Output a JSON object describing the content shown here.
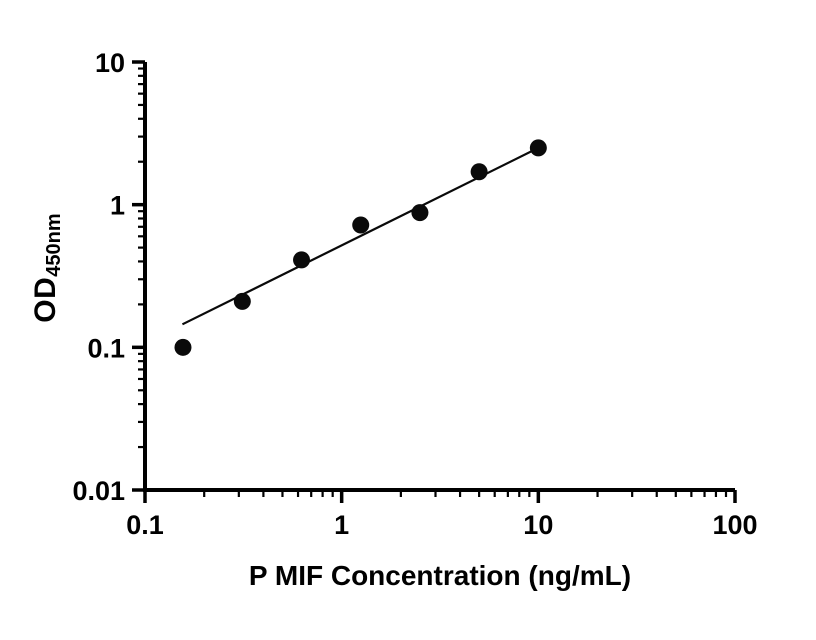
{
  "chart_data": {
    "type": "scatter",
    "title": "",
    "xlabel": "P MIF Concentration (ng/mL)",
    "ylabel_main": "OD",
    "ylabel_sub": "450nm",
    "x_scale": "log",
    "y_scale": "log",
    "xlim": [
      0.1,
      100
    ],
    "ylim": [
      0.01,
      10
    ],
    "x_ticks": [
      "0.1",
      "1",
      "10",
      "100"
    ],
    "x_tick_values": [
      0.1,
      1,
      10,
      100
    ],
    "y_ticks": [
      "0.01",
      "0.1",
      "1",
      "10"
    ],
    "y_tick_values": [
      0.01,
      0.1,
      1,
      10
    ],
    "grid": false,
    "legend": "none",
    "points": [
      {
        "x": 0.156,
        "y": 0.1
      },
      {
        "x": 0.3125,
        "y": 0.21
      },
      {
        "x": 0.625,
        "y": 0.41
      },
      {
        "x": 1.25,
        "y": 0.72
      },
      {
        "x": 2.5,
        "y": 0.88
      },
      {
        "x": 5,
        "y": 1.7
      },
      {
        "x": 10,
        "y": 2.5
      }
    ],
    "fit_line": {
      "x1": 0.155,
      "y1": 0.145,
      "x2": 10,
      "y2": 2.5
    },
    "marker_color": "#0a0a0a",
    "line_color": "#0a0a0a",
    "axis_color": "#000000",
    "background_color": "#ffffff"
  }
}
